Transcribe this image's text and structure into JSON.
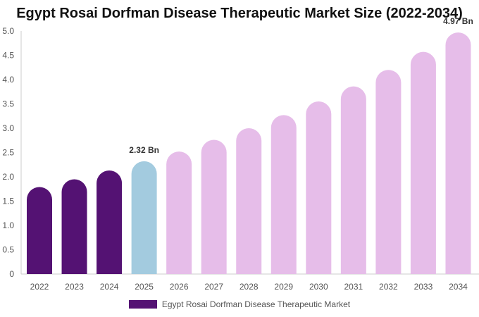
{
  "chart_data": {
    "type": "bar",
    "title": "Egypt Rosai Dorfman Disease Therapeutic Market Size (2022-2034)",
    "categories": [
      "2022",
      "2023",
      "2024",
      "2025",
      "2026",
      "2027",
      "2028",
      "2029",
      "2030",
      "2031",
      "2032",
      "2033",
      "2034"
    ],
    "series": [
      {
        "name": "Egypt Rosai Dorfman Disease Therapeutic Market",
        "values": [
          1.79,
          1.95,
          2.13,
          2.32,
          2.52,
          2.76,
          3.0,
          3.27,
          3.55,
          3.86,
          4.2,
          4.57,
          4.97
        ]
      }
    ],
    "bar_colors": [
      "#541273",
      "#541273",
      "#541273",
      "#a3cbdf",
      "#e6bde9",
      "#e6bde9",
      "#e6bde9",
      "#e6bde9",
      "#e6bde9",
      "#e6bde9",
      "#e6bde9",
      "#e6bde9",
      "#e6bde9"
    ],
    "legend_color": "#541273",
    "yticks": [
      "0",
      "0.5",
      "1.0",
      "1.5",
      "2.0",
      "2.5",
      "3.0",
      "3.5",
      "4.0",
      "4.5",
      "5.0"
    ],
    "ylim": [
      0,
      5.0
    ],
    "data_labels": [
      {
        "category": "2025",
        "text": "2.32 Bn"
      },
      {
        "category": "2034",
        "text": "4.97 Bn"
      }
    ],
    "legend_position": "bottom",
    "grid": false
  }
}
